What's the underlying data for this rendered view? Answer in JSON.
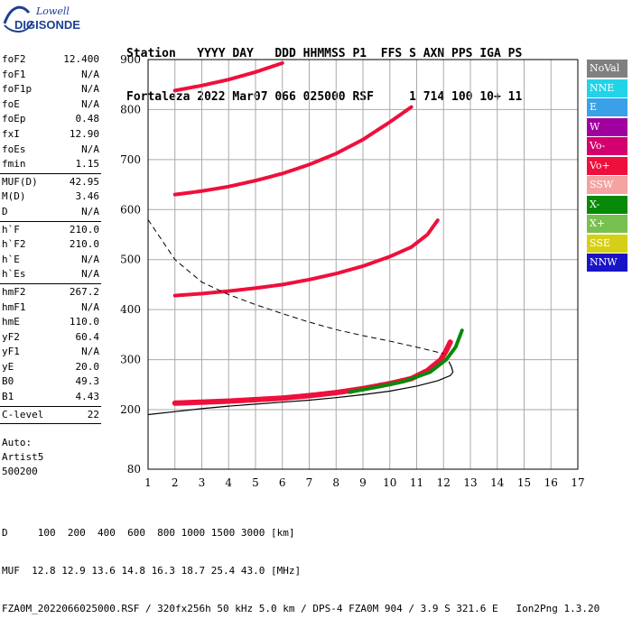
{
  "logo": {
    "line1": "Lowell",
    "line2": "DIGISONDE"
  },
  "header": {
    "line1": "Station   YYYY DAY   DDD HHMMSS P1  FFS S AXN PPS IGA PS",
    "line2": "Fortaleza 2022 Mar07 066 025000 RSF     1 714 100 10+ 11"
  },
  "params": [
    {
      "name": "foF2",
      "value": "12.400"
    },
    {
      "name": "foF1",
      "value": "N/A"
    },
    {
      "name": "foF1p",
      "value": "N/A"
    },
    {
      "name": "foE",
      "value": "N/A"
    },
    {
      "name": "foEp",
      "value": "0.48"
    },
    {
      "name": "fxI",
      "value": "12.90"
    },
    {
      "name": "foEs",
      "value": "N/A"
    },
    {
      "name": "fmin",
      "value": "1.15"
    },
    {
      "sep": true
    },
    {
      "name": "MUF(D)",
      "value": "42.95"
    },
    {
      "name": "M(D)",
      "value": "3.46"
    },
    {
      "name": "D",
      "value": "N/A"
    },
    {
      "sep": true
    },
    {
      "name": "h`F",
      "value": "210.0"
    },
    {
      "name": "h`F2",
      "value": "210.0"
    },
    {
      "name": "h`E",
      "value": "N/A"
    },
    {
      "name": "h`Es",
      "value": "N/A"
    },
    {
      "sep": true
    },
    {
      "name": "hmF2",
      "value": "267.2"
    },
    {
      "name": "hmF1",
      "value": "N/A"
    },
    {
      "name": "hmE",
      "value": "110.0"
    },
    {
      "name": "yF2",
      "value": "60.4"
    },
    {
      "name": "yF1",
      "value": "N/A"
    },
    {
      "name": "yE",
      "value": "20.0"
    },
    {
      "name": "B0",
      "value": "49.3"
    },
    {
      "name": "B1",
      "value": "4.43"
    },
    {
      "sep": true
    },
    {
      "name": "C-level",
      "value": "22"
    },
    {
      "sep": true
    }
  ],
  "auto": [
    "Auto:",
    "Artist5",
    "500200"
  ],
  "legend": [
    {
      "label": "NoVal",
      "color": "#808080"
    },
    {
      "label": "NNE",
      "color": "#22d3e8"
    },
    {
      "label": "E",
      "color": "#3aa0e8"
    },
    {
      "label": "W",
      "color": "#a0009f"
    },
    {
      "label": "Vo-",
      "color": "#d4006e"
    },
    {
      "label": "Vo+",
      "color": "#ef0f3c"
    },
    {
      "label": "SSW",
      "color": "#f4a2a2"
    },
    {
      "label": "X-",
      "color": "#078a07"
    },
    {
      "label": "X+",
      "color": "#78c050"
    },
    {
      "label": "SSE",
      "color": "#d6cf18"
    },
    {
      "label": "NNW",
      "color": "#1a14c8"
    }
  ],
  "footer": {
    "line1": "D     100  200  400  600  800 1000 1500 3000 [km]",
    "line2": "MUF  12.8 12.9 13.6 14.8 16.3 18.7 25.4 43.0 [MHz]",
    "line3": "FZA0M_2022066025000.RSF / 320fx256h 50 kHz 5.0 km / DPS-4 FZA0M 904 / 3.9 S 321.6 E   Ion2Png 1.3.20"
  },
  "chart_data": {
    "type": "scatter",
    "xlim": [
      1,
      17
    ],
    "ylim": [
      80,
      900
    ],
    "xticks": [
      1,
      2,
      3,
      4,
      5,
      6,
      7,
      8,
      9,
      10,
      11,
      12,
      13,
      14,
      15,
      16,
      17
    ],
    "yticks": [
      80,
      200,
      300,
      400,
      500,
      600,
      700,
      800,
      900
    ],
    "grid": true,
    "traces": [
      {
        "name": "F2 trace (1st hop)",
        "color": "#ef0f3c",
        "x": [
          2.0,
          3.0,
          4.0,
          5.0,
          6.0,
          7.0,
          8.0,
          9.0,
          10.0,
          10.8,
          11.4,
          11.9,
          12.1,
          12.25
        ],
        "y": [
          213,
          215,
          217,
          220,
          223,
          228,
          234,
          242,
          252,
          262,
          278,
          300,
          318,
          335
        ]
      },
      {
        "name": "F2 trace (X mode)",
        "color": "#078a07",
        "x": [
          8.5,
          9.5,
          10.5,
          11.5,
          12.1,
          12.45,
          12.7
        ],
        "y": [
          235,
          245,
          256,
          275,
          300,
          325,
          360
        ]
      },
      {
        "name": "2nd hop",
        "color": "#ef0f3c",
        "x": [
          2.0,
          3.0,
          4.0,
          5.0,
          6.0,
          7.0,
          8.0,
          9.0,
          10.0,
          10.8,
          11.4,
          11.8
        ],
        "y": [
          428,
          432,
          437,
          443,
          450,
          460,
          472,
          487,
          506,
          525,
          550,
          580
        ]
      },
      {
        "name": "3rd hop",
        "color": "#ef0f3c",
        "x": [
          2.0,
          3.0,
          4.0,
          5.0,
          6.0,
          7.0,
          8.0,
          9.0,
          10.0,
          10.8
        ],
        "y": [
          630,
          637,
          646,
          658,
          672,
          690,
          712,
          740,
          775,
          805
        ]
      },
      {
        "name": "4th hop",
        "color": "#ef0f3c",
        "x": [
          2.0,
          3.0,
          4.0,
          5.0,
          6.0
        ],
        "y": [
          838,
          848,
          860,
          875,
          893
        ]
      }
    ],
    "profile": {
      "x": [
        1.0,
        2.0,
        3.0,
        4.0,
        5.0,
        6.0,
        7.0,
        8.0,
        9.0,
        10.0,
        11.0,
        11.8,
        12.25,
        12.35,
        12.3,
        12.2
      ],
      "y": [
        190,
        196,
        202,
        207,
        211,
        215,
        219,
        224,
        230,
        237,
        247,
        258,
        268,
        275,
        285,
        296
      ]
    },
    "muf_curve": {
      "x": [
        1.0,
        1.5,
        2.0,
        3.0,
        4.0,
        5.0,
        6.0,
        7.0,
        8.0,
        9.0,
        10.0,
        11.0,
        12.0
      ],
      "y": [
        580,
        540,
        500,
        455,
        430,
        410,
        392,
        375,
        360,
        348,
        337,
        325,
        312
      ]
    }
  }
}
